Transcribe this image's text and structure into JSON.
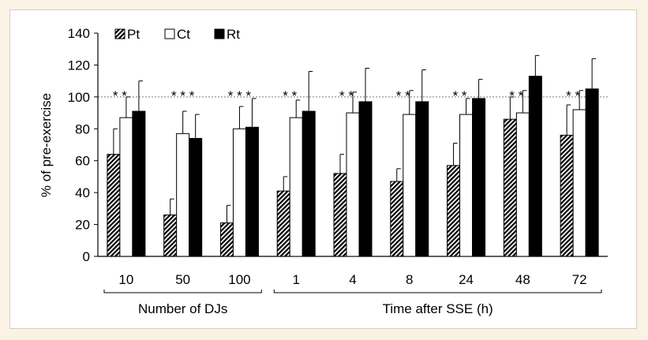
{
  "chart_data": {
    "type": "bar",
    "title": "",
    "ylabel": "% of pre-exercise",
    "ylim": [
      0,
      140
    ],
    "yticks": [
      0,
      20,
      40,
      60,
      80,
      100,
      120,
      140
    ],
    "reference_line": 100,
    "grid": false,
    "legend_position": "top-left",
    "categories": [
      "10",
      "50",
      "100",
      "1",
      "4",
      "8",
      "24",
      "48",
      "72"
    ],
    "groups": [
      {
        "label": "Number of DJs",
        "categories": [
          "10",
          "50",
          "100"
        ]
      },
      {
        "label": "Time after SSE (h)",
        "categories": [
          "1",
          "4",
          "8",
          "24",
          "48",
          "72"
        ]
      }
    ],
    "series": [
      {
        "name": "Pt",
        "pattern": "hatched",
        "values": [
          64,
          26,
          21,
          41,
          52,
          47,
          57,
          86,
          76
        ],
        "errors": [
          16,
          10,
          11,
          9,
          12,
          8,
          14,
          14,
          19
        ]
      },
      {
        "name": "Ct",
        "pattern": "white",
        "values": [
          87,
          77,
          80,
          87,
          90,
          89,
          89,
          90,
          92
        ],
        "errors": [
          13,
          14,
          14,
          11,
          13,
          15,
          10,
          14,
          12
        ]
      },
      {
        "name": "Rt",
        "pattern": "black",
        "values": [
          91,
          74,
          81,
          91,
          97,
          97,
          99,
          113,
          105
        ],
        "errors": [
          19,
          15,
          18,
          25,
          21,
          20,
          12,
          13,
          19
        ]
      }
    ],
    "significance_marks": [
      "* *",
      "* * *",
      "* * *",
      "* *",
      "* *",
      "* *",
      "* *",
      "* *",
      "* *"
    ]
  }
}
